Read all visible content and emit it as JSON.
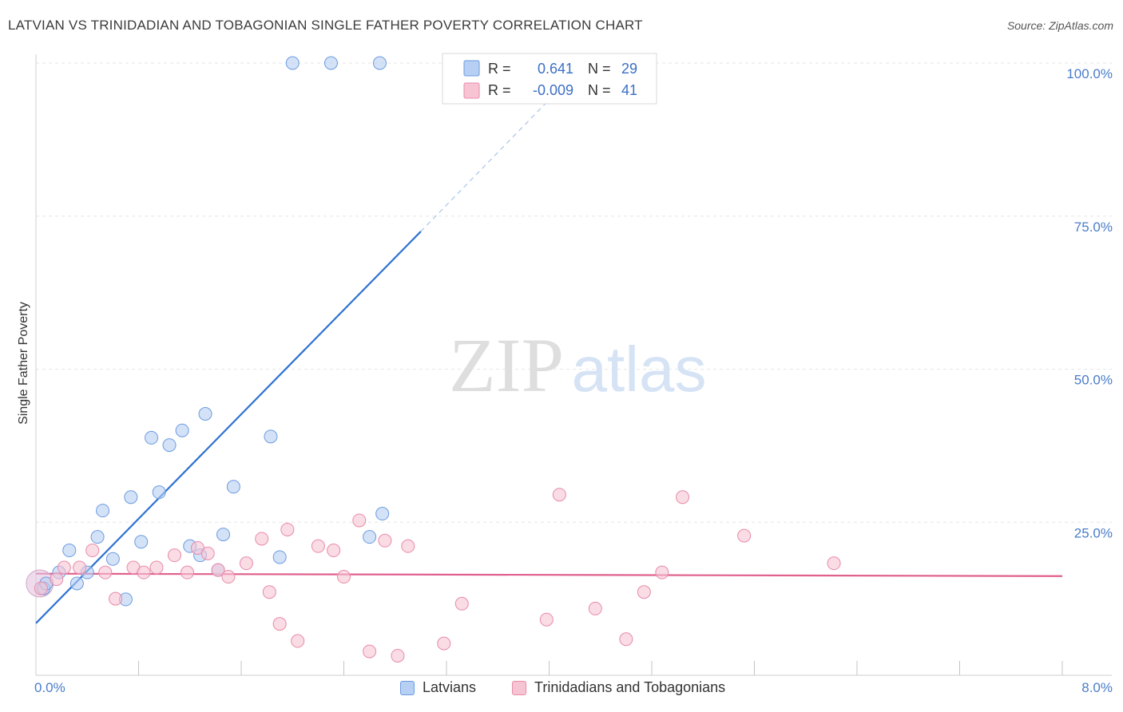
{
  "title": "LATVIAN VS TRINIDADIAN AND TOBAGONIAN SINGLE FATHER POVERTY CORRELATION CHART",
  "source": "Source: ZipAtlas.com",
  "watermark": {
    "zip": "ZIP",
    "atlas": "atlas"
  },
  "chart_data": {
    "type": "scatter",
    "xlabel": "",
    "ylabel": "Single Father Poverty",
    "xlim": [
      0,
      8
    ],
    "ylim": [
      0,
      100
    ],
    "x_tick_labels": {
      "min": "0.0%",
      "max": "8.0%"
    },
    "y_ticks": [
      {
        "value": 25,
        "label": "25.0%"
      },
      {
        "value": 50,
        "label": "50.0%"
      },
      {
        "value": 75,
        "label": "75.0%"
      },
      {
        "value": 100,
        "label": "100.0%"
      }
    ],
    "grid": true,
    "legend": {
      "placement": "top-center",
      "entries": [
        {
          "r_label": "R =",
          "r_value": "0.641",
          "n_label": "N =",
          "n_value": "29"
        },
        {
          "r_label": "R =",
          "r_value": "-0.009",
          "n_label": "N =",
          "n_value": "41"
        }
      ]
    },
    "series": [
      {
        "name": "Latvians",
        "color": "#6b9be0",
        "fill": "#b7cff2",
        "trend": {
          "x0": 0.0,
          "y0": 8.5,
          "x1": 3.0,
          "y1": 72.5,
          "dash_to_x": 4.0,
          "dash_to_y": 94.0,
          "color": "#2e72d2"
        },
        "points": [
          {
            "x": 0.06,
            "y": 14.2
          },
          {
            "x": 0.08,
            "y": 15.0
          },
          {
            "x": 0.18,
            "y": 16.8
          },
          {
            "x": 0.26,
            "y": 20.4
          },
          {
            "x": 0.32,
            "y": 15.0
          },
          {
            "x": 0.4,
            "y": 16.8
          },
          {
            "x": 0.48,
            "y": 22.6
          },
          {
            "x": 0.52,
            "y": 26.9
          },
          {
            "x": 0.6,
            "y": 19.0
          },
          {
            "x": 0.7,
            "y": 12.4
          },
          {
            "x": 0.74,
            "y": 29.1
          },
          {
            "x": 0.82,
            "y": 21.8
          },
          {
            "x": 0.9,
            "y": 38.8
          },
          {
            "x": 0.96,
            "y": 29.9
          },
          {
            "x": 1.04,
            "y": 37.6
          },
          {
            "x": 1.14,
            "y": 40.0
          },
          {
            "x": 1.2,
            "y": 21.1
          },
          {
            "x": 1.28,
            "y": 19.6
          },
          {
            "x": 1.32,
            "y": 42.7
          },
          {
            "x": 1.42,
            "y": 17.2
          },
          {
            "x": 1.46,
            "y": 23.0
          },
          {
            "x": 1.54,
            "y": 30.8
          },
          {
            "x": 1.83,
            "y": 39.0
          },
          {
            "x": 1.9,
            "y": 19.3
          },
          {
            "x": 2.0,
            "y": 100.0
          },
          {
            "x": 2.3,
            "y": 100.0
          },
          {
            "x": 2.68,
            "y": 100.0
          },
          {
            "x": 2.6,
            "y": 22.6
          },
          {
            "x": 2.7,
            "y": 26.4
          }
        ]
      },
      {
        "name": "Trinidadians and Tobagonians",
        "color": "#e88aab",
        "fill": "#f7c4d4",
        "trend": {
          "x0": 0.0,
          "y0": 16.6,
          "x1": 8.0,
          "y1": 16.2,
          "color": "#e0608e"
        },
        "points": [
          {
            "x": 0.04,
            "y": 14.2
          },
          {
            "x": 0.16,
            "y": 15.7
          },
          {
            "x": 0.22,
            "y": 17.6
          },
          {
            "x": 0.34,
            "y": 17.6
          },
          {
            "x": 0.44,
            "y": 20.4
          },
          {
            "x": 0.54,
            "y": 16.8
          },
          {
            "x": 0.62,
            "y": 12.5
          },
          {
            "x": 0.76,
            "y": 17.6
          },
          {
            "x": 0.84,
            "y": 16.8
          },
          {
            "x": 0.94,
            "y": 17.6
          },
          {
            "x": 1.08,
            "y": 19.6
          },
          {
            "x": 1.18,
            "y": 16.8
          },
          {
            "x": 1.26,
            "y": 20.8
          },
          {
            "x": 1.34,
            "y": 19.9
          },
          {
            "x": 1.42,
            "y": 17.2
          },
          {
            "x": 1.5,
            "y": 16.1
          },
          {
            "x": 1.64,
            "y": 18.3
          },
          {
            "x": 1.76,
            "y": 22.3
          },
          {
            "x": 1.82,
            "y": 13.6
          },
          {
            "x": 1.9,
            "y": 8.4
          },
          {
            "x": 1.96,
            "y": 23.8
          },
          {
            "x": 2.04,
            "y": 5.6
          },
          {
            "x": 2.2,
            "y": 21.1
          },
          {
            "x": 2.32,
            "y": 20.4
          },
          {
            "x": 2.4,
            "y": 16.1
          },
          {
            "x": 2.52,
            "y": 25.3
          },
          {
            "x": 2.6,
            "y": 3.9
          },
          {
            "x": 2.72,
            "y": 22.0
          },
          {
            "x": 2.82,
            "y": 3.2
          },
          {
            "x": 2.9,
            "y": 21.1
          },
          {
            "x": 3.18,
            "y": 5.2
          },
          {
            "x": 3.32,
            "y": 11.7
          },
          {
            "x": 3.98,
            "y": 9.1
          },
          {
            "x": 4.08,
            "y": 29.5
          },
          {
            "x": 4.36,
            "y": 10.9
          },
          {
            "x": 4.6,
            "y": 5.9
          },
          {
            "x": 4.74,
            "y": 13.6
          },
          {
            "x": 4.88,
            "y": 16.8
          },
          {
            "x": 5.04,
            "y": 29.1
          },
          {
            "x": 5.52,
            "y": 22.8
          },
          {
            "x": 6.22,
            "y": 18.3
          }
        ]
      }
    ]
  }
}
